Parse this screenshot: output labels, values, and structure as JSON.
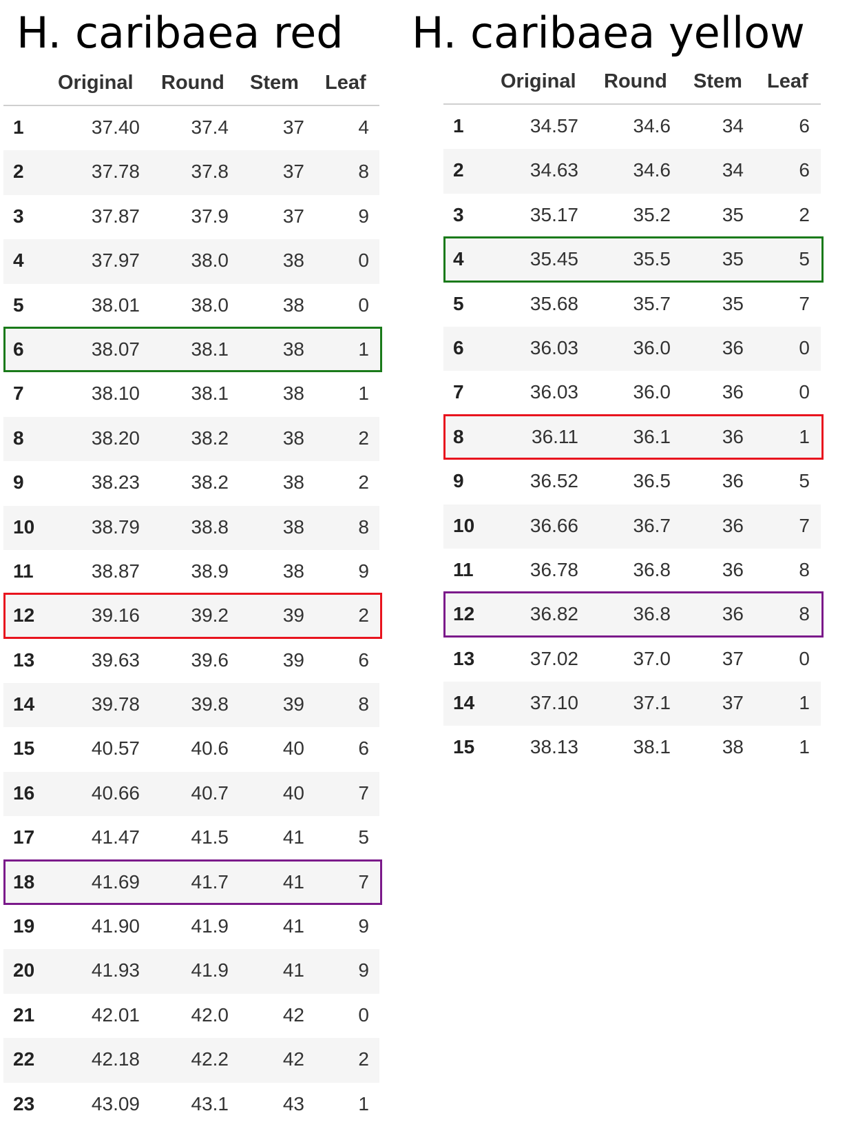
{
  "tables": {
    "red": {
      "title": "H. caribaea red",
      "headers": [
        "",
        "Original",
        "Round",
        "Stem",
        "Leaf"
      ],
      "rows": [
        [
          "1",
          "37.40",
          "37.4",
          "37",
          "4"
        ],
        [
          "2",
          "37.78",
          "37.8",
          "37",
          "8"
        ],
        [
          "3",
          "37.87",
          "37.9",
          "37",
          "9"
        ],
        [
          "4",
          "37.97",
          "38.0",
          "38",
          "0"
        ],
        [
          "5",
          "38.01",
          "38.0",
          "38",
          "0"
        ],
        [
          "6",
          "38.07",
          "38.1",
          "38",
          "1"
        ],
        [
          "7",
          "38.10",
          "38.1",
          "38",
          "1"
        ],
        [
          "8",
          "38.20",
          "38.2",
          "38",
          "2"
        ],
        [
          "9",
          "38.23",
          "38.2",
          "38",
          "2"
        ],
        [
          "10",
          "38.79",
          "38.8",
          "38",
          "8"
        ],
        [
          "11",
          "38.87",
          "38.9",
          "38",
          "9"
        ],
        [
          "12",
          "39.16",
          "39.2",
          "39",
          "2"
        ],
        [
          "13",
          "39.63",
          "39.6",
          "39",
          "6"
        ],
        [
          "14",
          "39.78",
          "39.8",
          "39",
          "8"
        ],
        [
          "15",
          "40.57",
          "40.6",
          "40",
          "6"
        ],
        [
          "16",
          "40.66",
          "40.7",
          "40",
          "7"
        ],
        [
          "17",
          "41.47",
          "41.5",
          "41",
          "5"
        ],
        [
          "18",
          "41.69",
          "41.7",
          "41",
          "7"
        ],
        [
          "19",
          "41.90",
          "41.9",
          "41",
          "9"
        ],
        [
          "20",
          "41.93",
          "41.9",
          "41",
          "9"
        ],
        [
          "21",
          "42.01",
          "42.0",
          "42",
          "0"
        ],
        [
          "22",
          "42.18",
          "42.2",
          "42",
          "2"
        ],
        [
          "23",
          "43.09",
          "43.1",
          "43",
          "1"
        ]
      ],
      "highlights": [
        {
          "row": "6",
          "color": "#1a7a1a"
        },
        {
          "row": "12",
          "color": "#e8141e"
        },
        {
          "row": "18",
          "color": "#7b1a8a"
        }
      ]
    },
    "yellow": {
      "title": "H. caribaea yellow",
      "headers": [
        "",
        "Original",
        "Round",
        "Stem",
        "Leaf"
      ],
      "rows": [
        [
          "1",
          "34.57",
          "34.6",
          "34",
          "6"
        ],
        [
          "2",
          "34.63",
          "34.6",
          "34",
          "6"
        ],
        [
          "3",
          "35.17",
          "35.2",
          "35",
          "2"
        ],
        [
          "4",
          "35.45",
          "35.5",
          "35",
          "5"
        ],
        [
          "5",
          "35.68",
          "35.7",
          "35",
          "7"
        ],
        [
          "6",
          "36.03",
          "36.0",
          "36",
          "0"
        ],
        [
          "7",
          "36.03",
          "36.0",
          "36",
          "0"
        ],
        [
          "8",
          "36.11",
          "36.1",
          "36",
          "1"
        ],
        [
          "9",
          "36.52",
          "36.5",
          "36",
          "5"
        ],
        [
          "10",
          "36.66",
          "36.7",
          "36",
          "7"
        ],
        [
          "11",
          "36.78",
          "36.8",
          "36",
          "8"
        ],
        [
          "12",
          "36.82",
          "36.8",
          "36",
          "8"
        ],
        [
          "13",
          "37.02",
          "37.0",
          "37",
          "0"
        ],
        [
          "14",
          "37.10",
          "37.1",
          "37",
          "1"
        ],
        [
          "15",
          "38.13",
          "38.1",
          "38",
          "1"
        ]
      ],
      "highlights": [
        {
          "row": "4",
          "color": "#1a7a1a"
        },
        {
          "row": "8",
          "color": "#e8141e"
        },
        {
          "row": "12",
          "color": "#7b1a8a"
        }
      ]
    }
  }
}
